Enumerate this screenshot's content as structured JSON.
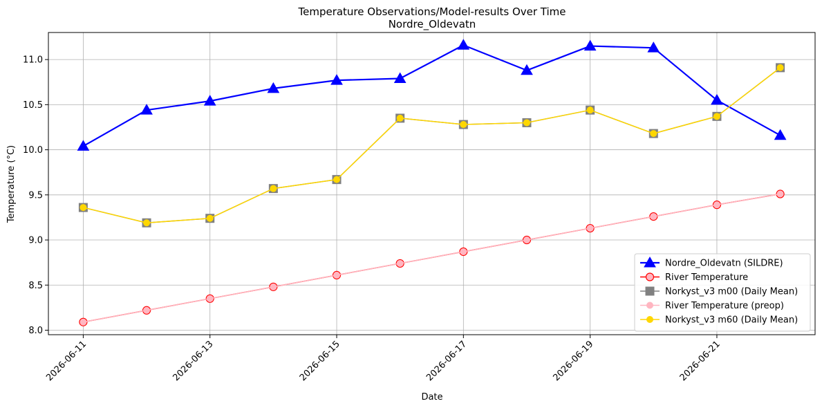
{
  "chart_data": {
    "type": "line",
    "title": "Temperature Observations/Model-results Over Time",
    "subtitle": "Nordre_Oldevatn",
    "xlabel": "Date",
    "ylabel": "Temperature (°C)",
    "x": [
      "2026-06-11",
      "2026-06-12",
      "2026-06-13",
      "2026-06-14",
      "2026-06-15",
      "2026-06-16",
      "2026-06-17",
      "2026-06-18",
      "2026-06-19",
      "2026-06-20",
      "2026-06-21",
      "2026-06-22"
    ],
    "x_ticks": [
      "2026-06-11",
      "2026-06-13",
      "2026-06-15",
      "2026-06-17",
      "2026-06-19",
      "2026-06-21"
    ],
    "y_ticks": [
      "8.0",
      "8.5",
      "9.0",
      "9.5",
      "10.0",
      "10.5",
      "11.0"
    ],
    "ylim": [
      7.95,
      11.3
    ],
    "xlim": [
      "2026-06-10T10:48",
      "2026-06-22T13:12"
    ],
    "grid": true,
    "legend_position": "lower-right",
    "series": [
      {
        "name": "Nordre_Oldevatn (SILDRE)",
        "color": "#0000ff",
        "marker": "triangle",
        "values": [
          10.04,
          10.44,
          10.54,
          10.68,
          10.77,
          10.79,
          11.16,
          10.88,
          11.15,
          11.13,
          10.55,
          10.16
        ]
      },
      {
        "name": "River Temperature",
        "color": "#ff0000",
        "marker": "circle",
        "values": [
          8.09,
          8.22,
          8.35,
          8.48,
          8.61,
          8.74,
          8.87,
          9.0,
          9.13,
          9.26,
          9.39,
          9.51
        ]
      },
      {
        "name": "Norkyst_v3 m00 (Daily Mean)",
        "color": "#808080",
        "marker": "square",
        "values": [
          9.36,
          9.19,
          9.24,
          9.57,
          9.67,
          10.35,
          10.28,
          10.3,
          10.44,
          10.18,
          10.37,
          10.91
        ]
      },
      {
        "name": "River Temperature (preop)",
        "color": "#ffb6c1",
        "marker": "small-circle",
        "values": [
          8.09,
          8.22,
          8.35,
          8.48,
          8.61,
          8.74,
          8.87,
          9.0,
          9.13,
          9.26,
          9.39,
          9.51
        ]
      },
      {
        "name": "Norkyst_v3 m60 (Daily Mean)",
        "color": "#ffd700",
        "marker": "small-circle",
        "values": [
          9.36,
          9.19,
          9.24,
          9.57,
          9.67,
          10.35,
          10.28,
          10.3,
          10.44,
          10.18,
          10.37,
          10.91
        ]
      }
    ]
  }
}
